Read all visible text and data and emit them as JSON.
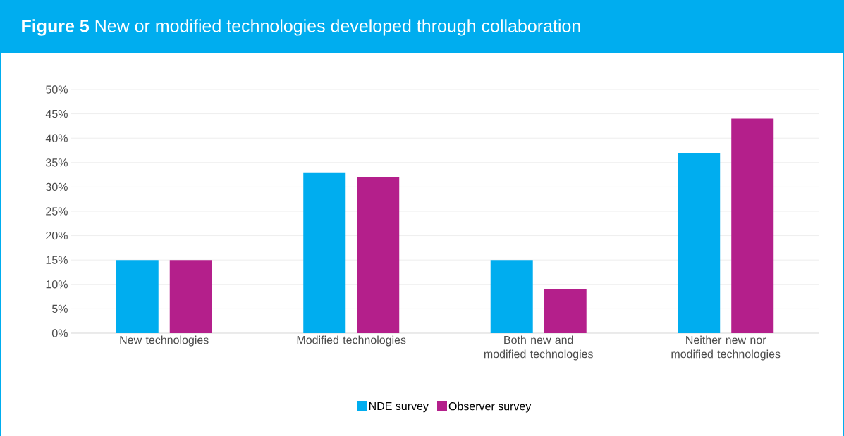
{
  "chart_data": {
    "type": "bar",
    "title": "**Figure 5**  New or modified technologies developed through collaboration",
    "categories": [
      "New technologies",
      "Modified technologies",
      "Both new and modified technologies",
      "Neither new nor modified technologies"
    ],
    "series": [
      {
        "name": "NDE survey",
        "color": "#00adef",
        "values": [
          15,
          33,
          15,
          37
        ]
      },
      {
        "name": "Observer survey",
        "color": "#b41f8b",
        "values": [
          15,
          32,
          9,
          44
        ]
      }
    ],
    "ylim": [
      0,
      50
    ],
    "yticks": [
      {
        "value": 0,
        "label": "0%"
      },
      {
        "value": 5,
        "label": "5%"
      },
      {
        "value": 10,
        "label": "10%"
      },
      {
        "value": 15,
        "label": "15%"
      },
      {
        "value": 20,
        "label": "20%"
      },
      {
        "value": 25,
        "label": "25%"
      },
      {
        "value": 30,
        "label": "30%"
      },
      {
        "value": 35,
        "label": "35%"
      },
      {
        "value": 40,
        "label": "40%"
      },
      {
        "value": 45,
        "label": "45%"
      },
      {
        "value": 50,
        "label": "50%"
      }
    ],
    "grid": "y",
    "legend": "bottom"
  }
}
